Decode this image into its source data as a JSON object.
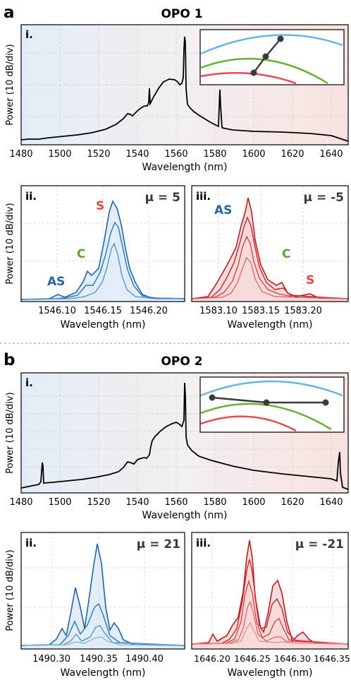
{
  "section_a": {
    "letter": "a",
    "title": "OPO 1"
  },
  "section_b": {
    "letter": "b",
    "title": "OPO 2"
  },
  "ylabel": "Power (10 dB/div)",
  "xlabel": "Wavelength (nm)",
  "colors": {
    "blue": "#2066ad",
    "red": "#c8242b",
    "green": "#55a62f",
    "curve_blue": "#62b6e6",
    "curve_green": "#68b034",
    "curve_red": "#e8494f",
    "dark": "#3a3a3a"
  },
  "chart_data": [
    {
      "id": "a-i",
      "type": "line",
      "panel_label": "i.",
      "x_ticks": [
        "1480",
        "1500",
        "1520",
        "1540",
        "1560",
        "1580",
        "1600",
        "1620",
        "1640"
      ],
      "xlim": [
        1480,
        1650
      ],
      "series": [
        {
          "points": [
            [
              1480,
              -62
            ],
            [
              1500,
              -60
            ],
            [
              1520,
              -56
            ],
            [
              1530,
              -52
            ],
            [
              1535,
              -44
            ],
            [
              1540,
              -43
            ],
            [
              1545,
              -40
            ],
            [
              1546.1,
              -14
            ],
            [
              1547,
              -39
            ],
            [
              1550,
              -32
            ],
            [
              1555,
              -22
            ],
            [
              1560,
              -20
            ],
            [
              1563,
              -26
            ],
            [
              1564,
              18
            ],
            [
              1565,
              -18
            ],
            [
              1568,
              -33
            ],
            [
              1572,
              -41
            ],
            [
              1578,
              -48
            ],
            [
              1583,
              -51
            ],
            [
              1583.2,
              -18
            ],
            [
              1584,
              -52
            ],
            [
              1600,
              -54
            ],
            [
              1620,
              -55
            ],
            [
              1640,
              -57
            ],
            [
              1650,
              -62
            ]
          ]
        }
      ]
    },
    {
      "id": "a-ii",
      "type": "line",
      "panel_label": "ii.",
      "mu_label": "μ = 5",
      "x_ticks": [
        "1546.10",
        "1546.15",
        "1546.20"
      ],
      "xlim": [
        1546.075,
        1546.225
      ],
      "annotations": [
        {
          "text": "AS",
          "x": 1546.1,
          "color": "blue"
        },
        {
          "text": "C",
          "x": 1546.133,
          "color": "green"
        },
        {
          "text": "S",
          "x": 1546.147,
          "color": "red"
        }
      ]
    },
    {
      "id": "a-iii",
      "type": "line",
      "panel_label": "iii.",
      "mu_label": "μ = -5",
      "x_ticks": [
        "1583.10",
        "1583.15",
        "1583.20"
      ],
      "xlim": [
        1583.075,
        1583.225
      ],
      "annotations": [
        {
          "text": "AS",
          "x": 1583.1,
          "color": "blue"
        },
        {
          "text": "C",
          "x": 1583.175,
          "color": "green"
        },
        {
          "text": "S",
          "x": 1583.2,
          "color": "red"
        }
      ]
    },
    {
      "id": "b-i",
      "type": "line",
      "panel_label": "i.",
      "x_ticks": [
        "1480",
        "1500",
        "1520",
        "1540",
        "1560",
        "1580",
        "1600",
        "1620",
        "1640"
      ],
      "xlim": [
        1480,
        1650
      ]
    },
    {
      "id": "b-ii",
      "type": "line",
      "panel_label": "ii.",
      "mu_label": "μ = 21",
      "x_ticks": [
        "1490.30",
        "1490.35",
        "1490.40"
      ],
      "xlim": [
        1490.265,
        1490.445
      ]
    },
    {
      "id": "b-iii",
      "type": "line",
      "panel_label": "iii.",
      "mu_label": "μ = -21",
      "x_ticks": [
        "1646.20",
        "1646.25",
        "1646.30",
        "1646.35"
      ],
      "xlim": [
        1646.185,
        1646.36
      ]
    }
  ]
}
